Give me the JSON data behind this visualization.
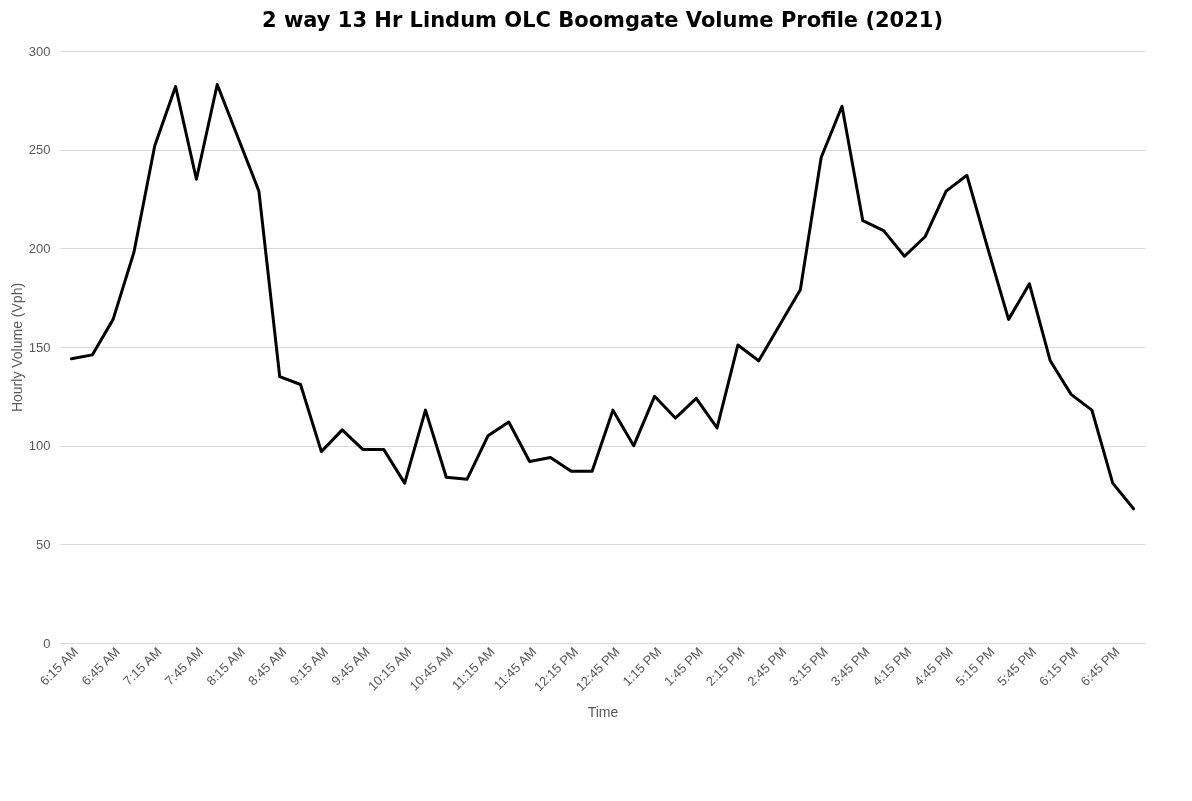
{
  "chart_data": {
    "type": "line",
    "title": "2 way 13 Hr Lindum OLC Boomgate Volume Profile (2021)",
    "xlabel": "Time",
    "ylabel": "Hourly Volume (Vph)",
    "categories": [
      "6:15 AM",
      null,
      "6:45 AM",
      null,
      "7:15 AM",
      null,
      "7:45 AM",
      null,
      "8:15 AM",
      null,
      "8:45 AM",
      null,
      "9:15 AM",
      null,
      "9:45 AM",
      null,
      "10:15 AM",
      null,
      "10:45 AM",
      null,
      "11:15 AM",
      null,
      "11:45 AM",
      null,
      "12:15 PM",
      null,
      "12:45 PM",
      null,
      "1:15 PM",
      null,
      "1:45 PM",
      null,
      "2:15 PM",
      null,
      "2:45 PM",
      null,
      "3:15 PM",
      null,
      "3:45 PM",
      null,
      "4:15 PM",
      null,
      "4:45 PM",
      null,
      "5:15 PM",
      null,
      "5:45 PM",
      null,
      "6:15 PM",
      null,
      "6:45 PM",
      null
    ],
    "series": [
      {
        "color": "#000000",
        "values": [
          144,
          146,
          164,
          198,
          252,
          282,
          235,
          283,
          256,
          229,
          135,
          131,
          97,
          108,
          98,
          98,
          81,
          118,
          84,
          83,
          105,
          112,
          92,
          94,
          87,
          87,
          118,
          100,
          125,
          114,
          124,
          109,
          151,
          143,
          161,
          179,
          246,
          272,
          214,
          209,
          196,
          206,
          229,
          237,
          200,
          164,
          182,
          143,
          126,
          118,
          81,
          68
        ]
      }
    ],
    "ylim": [
      0,
      300
    ],
    "yticks": [
      0,
      50,
      100,
      150,
      200,
      250,
      300
    ],
    "grid": "y",
    "line_style": "solid"
  }
}
